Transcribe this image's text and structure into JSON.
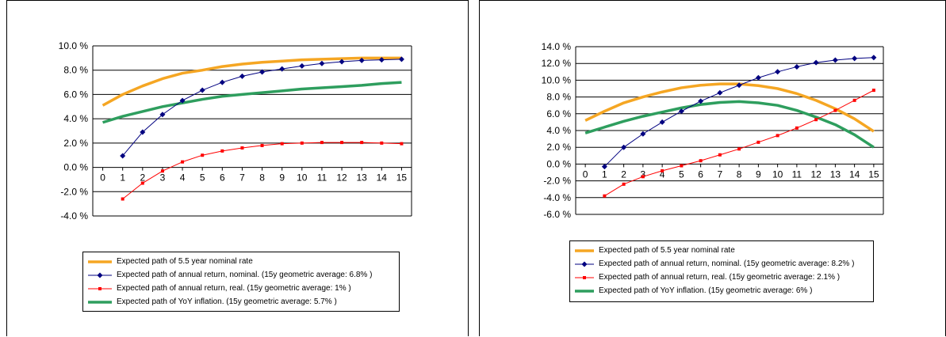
{
  "chart_data": [
    {
      "type": "line",
      "x": [
        0,
        1,
        2,
        3,
        4,
        5,
        6,
        7,
        8,
        9,
        10,
        11,
        12,
        13,
        14,
        15
      ],
      "ylim": [
        -4.0,
        10.0
      ],
      "yticks": [
        -4.0,
        -2.0,
        0.0,
        2.0,
        4.0,
        6.0,
        8.0,
        10.0
      ],
      "ytick_labels": [
        "-4.0 %",
        "-2.0 %",
        "0.0 %",
        "2.0 %",
        "4.0 %",
        "6.0 %",
        "8.0 %",
        "10.0 %"
      ],
      "xtick_labels": [
        "0",
        "1",
        "2",
        "3",
        "4",
        "5",
        "6",
        "7",
        "8",
        "9",
        "10",
        "11",
        "12",
        "13",
        "14",
        "15"
      ],
      "grid": "horizontal",
      "legend_position": "bottom",
      "series": [
        {
          "name": "Expected path of 5.5 year nominal rate",
          "color": "#f5a623",
          "marker": "none",
          "x": [
            0,
            1,
            2,
            3,
            4,
            5,
            6,
            7,
            8,
            9,
            10,
            11,
            12,
            13,
            14,
            15
          ],
          "values": [
            5.1,
            6.0,
            6.7,
            7.3,
            7.75,
            8.0,
            8.3,
            8.5,
            8.65,
            8.75,
            8.85,
            8.9,
            8.95,
            9.0,
            9.0,
            9.0
          ]
        },
        {
          "name": "Expected path of annual return, nominal. (15y geometric average: 6.8% )",
          "color": "#000080",
          "marker": "diamond",
          "x": [
            1,
            2,
            3,
            4,
            5,
            6,
            7,
            8,
            9,
            10,
            11,
            12,
            13,
            14,
            15
          ],
          "values": [
            0.95,
            2.9,
            4.35,
            5.5,
            6.35,
            7.0,
            7.5,
            7.85,
            8.1,
            8.35,
            8.55,
            8.7,
            8.8,
            8.85,
            8.9
          ]
        },
        {
          "name": "Expected path of annual return, real. (15y geometric average: 1% )",
          "color": "#ff0000",
          "marker": "square",
          "x": [
            1,
            2,
            3,
            4,
            5,
            6,
            7,
            8,
            9,
            10,
            11,
            12,
            13,
            14,
            15
          ],
          "values": [
            -2.6,
            -1.3,
            -0.3,
            0.45,
            1.0,
            1.35,
            1.6,
            1.8,
            1.95,
            2.0,
            2.05,
            2.05,
            2.05,
            2.0,
            1.95
          ]
        },
        {
          "name": "Expected path of YoY inflation. (15y geometric average: 5.7% )",
          "color": "#2e9e5e",
          "marker": "none",
          "x": [
            0,
            1,
            2,
            3,
            4,
            5,
            6,
            7,
            8,
            9,
            10,
            11,
            12,
            13,
            14,
            15
          ],
          "values": [
            3.7,
            4.2,
            4.6,
            5.0,
            5.3,
            5.6,
            5.85,
            6.0,
            6.15,
            6.3,
            6.45,
            6.55,
            6.65,
            6.75,
            6.9,
            7.0
          ]
        }
      ]
    },
    {
      "type": "line",
      "x": [
        0,
        1,
        2,
        3,
        4,
        5,
        6,
        7,
        8,
        9,
        10,
        11,
        12,
        13,
        14,
        15
      ],
      "ylim": [
        -6.0,
        14.0
      ],
      "yticks": [
        -6.0,
        -4.0,
        -2.0,
        0.0,
        2.0,
        4.0,
        6.0,
        8.0,
        10.0,
        12.0,
        14.0
      ],
      "ytick_labels": [
        "-6.0 %",
        "-4.0 %",
        "-2.0 %",
        "0.0 %",
        "2.0 %",
        "4.0 %",
        "6.0 %",
        "8.0 %",
        "10.0 %",
        "12.0 %",
        "14.0 %"
      ],
      "xtick_labels": [
        "0",
        "1",
        "2",
        "3",
        "4",
        "5",
        "6",
        "7",
        "8",
        "9",
        "10",
        "11",
        "12",
        "13",
        "14",
        "15"
      ],
      "grid": "horizontal",
      "legend_position": "bottom",
      "series": [
        {
          "name": "Expected path of 5.5 year nominal rate",
          "color": "#f5a623",
          "marker": "none",
          "x": [
            0,
            1,
            2,
            3,
            4,
            5,
            6,
            7,
            8,
            9,
            10,
            11,
            12,
            13,
            14,
            15
          ],
          "values": [
            5.2,
            6.3,
            7.3,
            8.0,
            8.6,
            9.1,
            9.4,
            9.55,
            9.55,
            9.35,
            9.0,
            8.4,
            7.6,
            6.6,
            5.4,
            3.9
          ]
        },
        {
          "name": "Expected path of annual return, nominal. (15y geometric average: 8.2% )",
          "color": "#000080",
          "marker": "diamond",
          "x": [
            1,
            2,
            3,
            4,
            5,
            6,
            7,
            8,
            9,
            10,
            11,
            12,
            13,
            14,
            15
          ],
          "values": [
            -0.3,
            2.0,
            3.6,
            5.0,
            6.3,
            7.5,
            8.5,
            9.4,
            10.3,
            11.0,
            11.6,
            12.1,
            12.4,
            12.6,
            12.7
          ]
        },
        {
          "name": "Expected path of annual return, real. (15y geometric average: 2.1% )",
          "color": "#ff0000",
          "marker": "square",
          "x": [
            1,
            2,
            3,
            4,
            5,
            6,
            7,
            8,
            9,
            10,
            11,
            12,
            13,
            14,
            15
          ],
          "values": [
            -3.8,
            -2.4,
            -1.5,
            -0.8,
            -0.2,
            0.4,
            1.1,
            1.8,
            2.6,
            3.4,
            4.3,
            5.3,
            6.4,
            7.6,
            8.8
          ]
        },
        {
          "name": "Expected path of YoY inflation. (15y geometric average: 6% )",
          "color": "#2e9e5e",
          "marker": "none",
          "x": [
            0,
            1,
            2,
            3,
            4,
            5,
            6,
            7,
            8,
            9,
            10,
            11,
            12,
            13,
            14,
            15
          ],
          "values": [
            3.7,
            4.4,
            5.1,
            5.7,
            6.2,
            6.7,
            7.1,
            7.35,
            7.45,
            7.3,
            7.0,
            6.4,
            5.6,
            4.7,
            3.5,
            2.0
          ]
        }
      ]
    }
  ]
}
